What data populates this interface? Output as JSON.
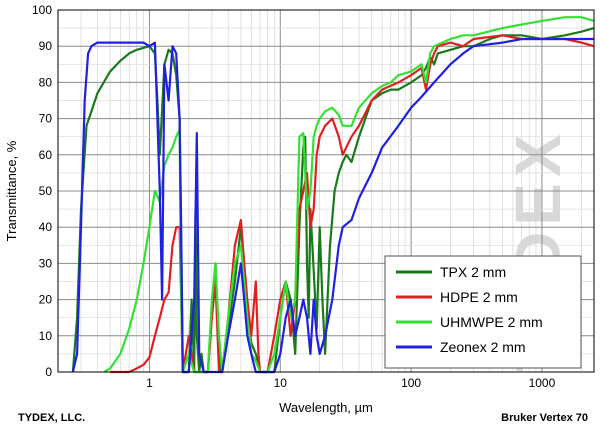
{
  "chart_data": {
    "type": "line",
    "xlabel": "Wavelength, µm",
    "ylabel": "Transmittance, %",
    "x_scale": "log",
    "xlim": [
      0.2,
      2500
    ],
    "ylim": [
      0,
      100
    ],
    "grid": true,
    "legend_position": "bottom-right",
    "x_tick_labels": [
      "1",
      "10",
      "100",
      "1000"
    ],
    "x_tick_values": [
      1,
      10,
      100,
      1000
    ],
    "y_ticks": [
      0,
      10,
      20,
      30,
      40,
      50,
      60,
      70,
      80,
      90,
      100
    ],
    "series": [
      {
        "name": "TPX 2 mm",
        "color": "#1a7a1a",
        "x": [
          0.26,
          0.28,
          0.3,
          0.33,
          0.36,
          0.4,
          0.5,
          0.6,
          0.7,
          0.8,
          1.0,
          1.1,
          1.15,
          1.2,
          1.3,
          1.4,
          1.5,
          1.6,
          1.7,
          1.75,
          1.8,
          2.0,
          2.1,
          2.2,
          2.25,
          2.3,
          2.4,
          2.5,
          2.6,
          2.8,
          3.0,
          3.2,
          3.4,
          3.5,
          3.6,
          4.0,
          4.5,
          5.0,
          5.3,
          5.6,
          6.0,
          6.5,
          7.0,
          7.5,
          8.0,
          8.5,
          9.0,
          10,
          11,
          12,
          13,
          14,
          15,
          15.5,
          16,
          16.5,
          17,
          18,
          19,
          20,
          21,
          22,
          24,
          26,
          28,
          30,
          32,
          35,
          40,
          50,
          60,
          70,
          80,
          100,
          120,
          130,
          140,
          150,
          160,
          200,
          250,
          300,
          400,
          500,
          700,
          1000,
          1500,
          2000,
          2500
        ],
        "y": [
          0,
          15,
          45,
          68,
          72,
          77,
          83,
          86,
          88,
          89,
          90,
          88,
          75,
          60,
          85,
          89,
          88,
          82,
          70,
          40,
          0,
          0,
          20,
          0,
          45,
          10,
          0,
          5,
          0,
          0,
          18,
          30,
          5,
          0,
          0,
          12,
          25,
          40,
          30,
          15,
          8,
          5,
          0,
          0,
          0,
          0,
          0,
          15,
          25,
          20,
          5,
          40,
          62,
          65,
          30,
          15,
          45,
          28,
          12,
          40,
          20,
          5,
          35,
          50,
          55,
          58,
          60,
          58,
          65,
          75,
          77,
          78,
          78,
          80,
          82,
          84,
          87,
          85,
          88,
          89,
          90,
          90,
          92,
          93,
          93,
          92,
          93,
          94,
          95
        ]
      },
      {
        "name": "HDPE 2 mm",
        "color": "#e02020",
        "x": [
          0.5,
          0.6,
          0.7,
          0.8,
          0.9,
          1.0,
          1.1,
          1.2,
          1.3,
          1.4,
          1.5,
          1.6,
          1.7,
          1.8,
          2.0,
          2.2,
          2.4,
          2.6,
          2.8,
          3.0,
          3.2,
          3.4,
          3.5,
          3.6,
          4.0,
          4.5,
          5.0,
          5.3,
          5.6,
          6.0,
          6.5,
          6.8,
          7.0,
          7.5,
          8.0,
          9.0,
          10,
          11,
          12,
          13,
          14,
          15,
          16,
          17,
          18,
          19,
          20,
          22,
          25,
          28,
          30,
          35,
          40,
          50,
          60,
          80,
          100,
          120,
          130,
          140,
          150,
          160,
          200,
          250,
          300,
          500,
          700,
          1000,
          1500,
          2000,
          2500
        ],
        "y": [
          0,
          0,
          0,
          1,
          2,
          4,
          10,
          15,
          20,
          22,
          35,
          40,
          40,
          0,
          10,
          0,
          0,
          0,
          0,
          15,
          25,
          0,
          0,
          0,
          15,
          35,
          42,
          30,
          20,
          10,
          25,
          5,
          0,
          0,
          0,
          10,
          20,
          25,
          10,
          20,
          45,
          50,
          55,
          40,
          45,
          60,
          65,
          68,
          70,
          65,
          60,
          65,
          68,
          75,
          78,
          80,
          82,
          84,
          78,
          85,
          88,
          90,
          91,
          90,
          92,
          93,
          92,
          92,
          92,
          91,
          90
        ]
      },
      {
        "name": "UHMWPE 2 mm",
        "color": "#33e033",
        "x": [
          0.45,
          0.5,
          0.6,
          0.7,
          0.8,
          0.9,
          1.0,
          1.1,
          1.2,
          1.3,
          1.4,
          1.5,
          1.6,
          1.7,
          1.75,
          1.8,
          2.0,
          2.2,
          2.4,
          2.6,
          2.8,
          3.0,
          3.2,
          3.4,
          3.6,
          4.0,
          4.5,
          5.0,
          5.3,
          5.6,
          6.0,
          6.5,
          7.0,
          8.0,
          9.0,
          10,
          11,
          12,
          13,
          14,
          15,
          15.5,
          16,
          17,
          18,
          19,
          20,
          22,
          25,
          28,
          30,
          35,
          40,
          50,
          60,
          70,
          80,
          100,
          120,
          130,
          140,
          150,
          200,
          250,
          300,
          500,
          700,
          1000,
          1500,
          2000,
          2500
        ],
        "y": [
          0,
          1,
          5,
          12,
          20,
          30,
          40,
          50,
          47,
          57,
          60,
          62,
          65,
          67,
          20,
          0,
          5,
          0,
          0,
          0,
          0,
          20,
          30,
          10,
          0,
          15,
          30,
          35,
          25,
          15,
          5,
          3,
          0,
          0,
          5,
          15,
          25,
          15,
          20,
          65,
          66,
          55,
          45,
          50,
          65,
          68,
          70,
          72,
          73,
          71,
          68,
          68,
          73,
          77,
          79,
          80,
          82,
          83,
          85,
          80,
          88,
          90,
          92,
          93,
          93,
          95,
          96,
          97,
          98,
          98,
          97
        ]
      },
      {
        "name": "Zeonex 2 mm",
        "color": "#2020e0",
        "x": [
          0.26,
          0.28,
          0.3,
          0.32,
          0.34,
          0.36,
          0.4,
          0.5,
          0.6,
          0.7,
          0.8,
          0.9,
          1.0,
          1.1,
          1.2,
          1.25,
          1.3,
          1.4,
          1.5,
          1.6,
          1.7,
          1.8,
          2.0,
          2.2,
          2.3,
          2.4,
          2.6,
          2.8,
          3.0,
          3.2,
          3.4,
          3.6,
          4.0,
          4.5,
          5.0,
          5.3,
          5.6,
          6.0,
          6.5,
          7.0,
          8.0,
          9.0,
          10,
          11,
          12,
          13,
          14,
          15,
          16,
          17,
          18,
          19,
          20,
          22,
          25,
          28,
          30,
          35,
          40,
          50,
          60,
          80,
          100,
          120,
          150,
          200,
          250,
          300,
          500,
          700,
          1000,
          1500,
          2000,
          2500
        ],
        "y": [
          0,
          5,
          40,
          75,
          88,
          90,
          91,
          91,
          91,
          91,
          91,
          91,
          90,
          91,
          50,
          20,
          85,
          75,
          90,
          88,
          70,
          0,
          0,
          20,
          66,
          5,
          0,
          0,
          0,
          0,
          0,
          0,
          10,
          20,
          30,
          20,
          10,
          5,
          0,
          0,
          0,
          0,
          5,
          15,
          20,
          10,
          15,
          20,
          15,
          5,
          20,
          10,
          5,
          10,
          20,
          35,
          40,
          42,
          48,
          55,
          62,
          68,
          73,
          76,
          80,
          85,
          88,
          90,
          91,
          92,
          92,
          92,
          92,
          92
        ]
      }
    ]
  },
  "footer": {
    "left": "TYDEX, LLC.",
    "right": "Bruker Vertex 70"
  },
  "watermark": "TYDEX"
}
